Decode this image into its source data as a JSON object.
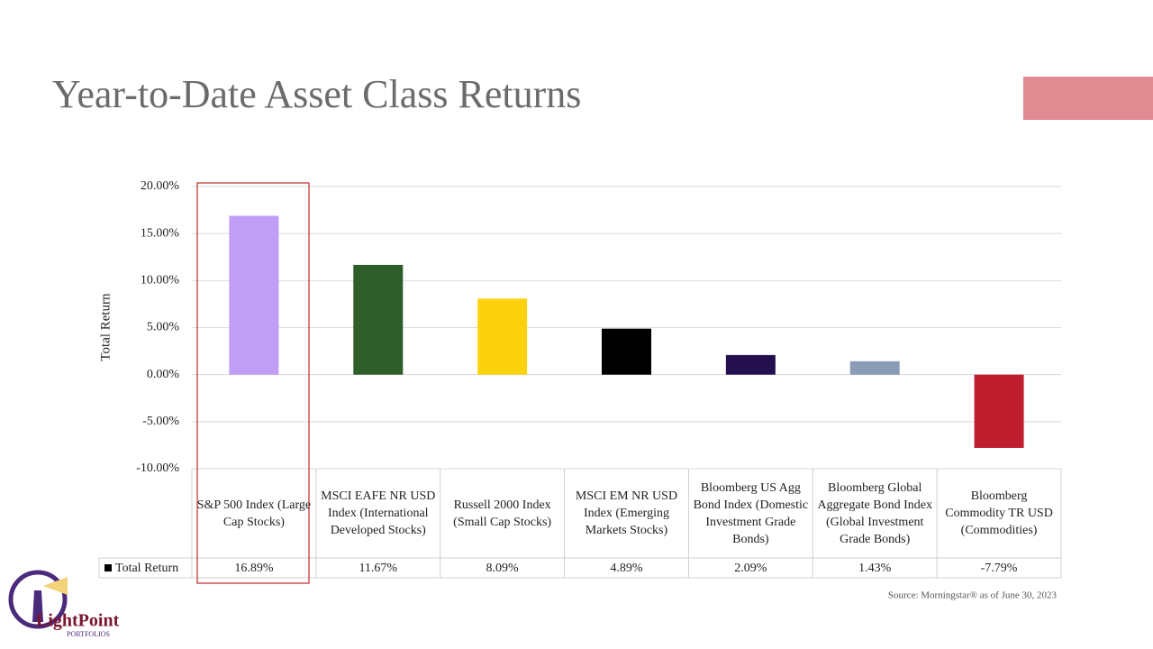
{
  "chart_data": {
    "type": "bar",
    "title": "Year-to-Date Asset Class Returns",
    "y_label": "Total Return",
    "categories": [
      "S&P 500 Index (Large Cap Stocks)",
      "MSCI EAFE NR USD Index (International Developed Stocks)",
      "Russell 2000 Index (Small Cap Stocks)",
      "MSCI EM NR USD Index (Emerging Markets Stocks)",
      "Bloomberg US Agg Bond Index (Domestic Investment Grade Bonds)",
      "Bloomberg Global Aggregate Bond Index (Global Investment Grade Bonds)",
      "Bloomberg Commodity TR USD (Commodities)"
    ],
    "series": [
      {
        "name": "Total Return",
        "values": [
          16.89,
          11.67,
          8.09,
          4.89,
          2.09,
          1.43,
          -7.79
        ],
        "value_labels": [
          "16.89%",
          "11.67%",
          "8.09%",
          "4.89%",
          "2.09%",
          "1.43%",
          "-7.79%"
        ],
        "colors": [
          "#c09ef5",
          "#2e5e2a",
          "#fcd20e",
          "#000000",
          "#24104f",
          "#8a9bb5",
          "#be1e2d"
        ]
      }
    ],
    "ylim": [
      -10,
      20
    ],
    "yticks": [
      {
        "value": -10,
        "label": "-10.00%"
      },
      {
        "value": -5,
        "label": "-5.00%"
      },
      {
        "value": 0,
        "label": "0.00%"
      },
      {
        "value": 5,
        "label": "5.00%"
      },
      {
        "value": 10,
        "label": "10.00%"
      },
      {
        "value": 15,
        "label": "15.00%"
      },
      {
        "value": 20,
        "label": "20.00%"
      }
    ],
    "grid": true,
    "source": "Source: Morningstar® as of June 30, 2023"
  },
  "logo": {
    "name": "LightPoint",
    "tagline": "PORTFOLIOS"
  }
}
